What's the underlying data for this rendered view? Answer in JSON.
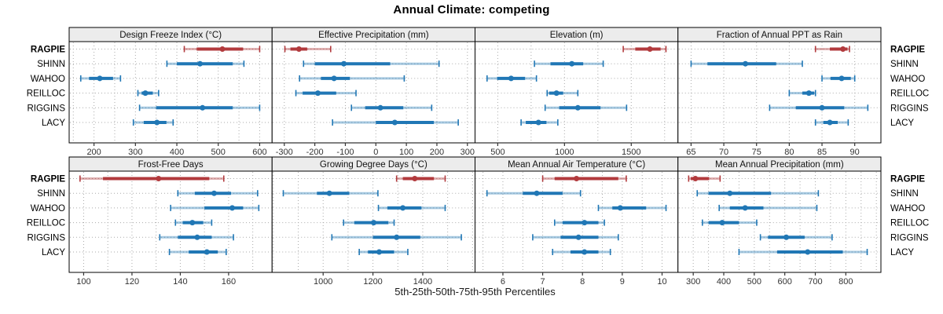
{
  "title": "Annual Climate: competing",
  "footer": "5th-25th-50th-75th-95th Percentiles",
  "sites": [
    "RAGPIE",
    "SHINN",
    "WAHOO",
    "REILLOC",
    "RIGGINS",
    "LACY"
  ],
  "highlight_site": "RAGPIE",
  "colors": {
    "highlight": "#b23a3d",
    "normal": "#2077b5",
    "strip_bg": "#ececec",
    "panel_border": "#000000",
    "grid": "#aaaaaa",
    "tick": "#333333",
    "tick_label": "#333333",
    "label": "#000000"
  },
  "chart_data": [
    {
      "type": "dot-interval",
      "title": "Design Freeze Index (°C)",
      "row": 0,
      "col": 0,
      "xlim": [
        140,
        630
      ],
      "ticks": [
        200,
        300,
        400,
        500,
        600
      ],
      "grid": [
        150,
        200,
        250,
        300,
        350,
        400,
        450,
        500,
        550,
        600
      ],
      "percentiles": [
        5,
        25,
        50,
        75,
        95
      ],
      "series": [
        {
          "name": "RAGPIE",
          "values": [
            418,
            448,
            510,
            560,
            600
          ]
        },
        {
          "name": "SHINN",
          "values": [
            376,
            400,
            456,
            535,
            562
          ]
        },
        {
          "name": "WAHOO",
          "values": [
            168,
            188,
            214,
            246,
            264
          ]
        },
        {
          "name": "REILLOC",
          "values": [
            306,
            315,
            324,
            342,
            356
          ]
        },
        {
          "name": "RIGGINS",
          "values": [
            310,
            350,
            462,
            535,
            600
          ]
        },
        {
          "name": "LACY",
          "values": [
            295,
            320,
            352,
            375,
            391
          ]
        }
      ]
    },
    {
      "type": "dot-interval",
      "title": "Effective Precipitation (mm)",
      "row": 0,
      "col": 1,
      "xlim": [
        -340,
        325
      ],
      "ticks": [
        -300,
        -200,
        -100,
        0,
        100,
        200,
        300
      ],
      "grid": [
        -300,
        -200,
        -100,
        0,
        100,
        200,
        300
      ],
      "percentiles": [
        5,
        25,
        50,
        75,
        95
      ],
      "series": [
        {
          "name": "RAGPIE",
          "values": [
            -298,
            -280,
            -252,
            -225,
            -148
          ]
        },
        {
          "name": "SHINN",
          "values": [
            -237,
            -200,
            -105,
            47,
            207
          ]
        },
        {
          "name": "WAHOO",
          "values": [
            -250,
            -180,
            -137,
            -85,
            93
          ]
        },
        {
          "name": "REILLOC",
          "values": [
            -262,
            -240,
            -190,
            -130,
            -65
          ]
        },
        {
          "name": "RIGGINS",
          "values": [
            -80,
            -35,
            15,
            90,
            183
          ]
        },
        {
          "name": "LACY",
          "values": [
            -142,
            0,
            62,
            190,
            270
          ]
        }
      ]
    },
    {
      "type": "dot-interval",
      "title": "Elevation (m)",
      "row": 0,
      "col": 2,
      "xlim": [
        330,
        1850
      ],
      "ticks": [
        500,
        1000,
        1500
      ],
      "grid": [
        500,
        750,
        1000,
        1250,
        1500,
        1750
      ],
      "percentiles": [
        5,
        25,
        50,
        75,
        95
      ],
      "series": [
        {
          "name": "RAGPIE",
          "values": [
            1440,
            1530,
            1640,
            1720,
            1760
          ]
        },
        {
          "name": "SHINN",
          "values": [
            775,
            895,
            1055,
            1140,
            1290
          ]
        },
        {
          "name": "WAHOO",
          "values": [
            420,
            495,
            600,
            705,
            790
          ]
        },
        {
          "name": "REILLOC",
          "values": [
            870,
            885,
            940,
            990,
            1100
          ]
        },
        {
          "name": "RIGGINS",
          "values": [
            855,
            960,
            1100,
            1270,
            1465
          ]
        },
        {
          "name": "LACY",
          "values": [
            675,
            710,
            805,
            865,
            950
          ]
        }
      ]
    },
    {
      "type": "dot-interval",
      "title": "Fraction of Annual PPT as Rain",
      "row": 0,
      "col": 3,
      "xlim": [
        63,
        94
      ],
      "ticks": [
        65,
        70,
        75,
        80,
        85,
        90
      ],
      "grid": [
        65,
        70,
        75,
        80,
        85,
        90
      ],
      "percentiles": [
        5,
        25,
        50,
        75,
        95
      ],
      "series": [
        {
          "name": "RAGPIE",
          "values": [
            84,
            86.2,
            88.2,
            88.9,
            89.2
          ]
        },
        {
          "name": "SHINN",
          "values": [
            65,
            67.5,
            73.3,
            78,
            82
          ]
        },
        {
          "name": "WAHOO",
          "values": [
            85,
            86.3,
            88,
            89.4,
            90
          ]
        },
        {
          "name": "REILLOC",
          "values": [
            80,
            82,
            83,
            83.8,
            84
          ]
        },
        {
          "name": "RIGGINS",
          "values": [
            77,
            81,
            85,
            88.4,
            92
          ]
        },
        {
          "name": "LACY",
          "values": [
            84,
            85.2,
            86.2,
            87.4,
            89
          ]
        }
      ]
    },
    {
      "type": "dot-interval",
      "title": "Frost-Free Days",
      "row": 1,
      "col": 0,
      "xlim": [
        94,
        178
      ],
      "ticks": [
        100,
        120,
        140,
        160
      ],
      "grid": [
        100,
        110,
        120,
        130,
        140,
        150,
        160,
        170
      ],
      "percentiles": [
        5,
        25,
        50,
        75,
        95
      ],
      "series": [
        {
          "name": "RAGPIE",
          "values": [
            98.5,
            108,
            131,
            152,
            158
          ]
        },
        {
          "name": "SHINN",
          "values": [
            139,
            146,
            154,
            161,
            172
          ]
        },
        {
          "name": "WAHOO",
          "values": [
            136,
            150,
            161.5,
            166,
            172.5
          ]
        },
        {
          "name": "REILLOC",
          "values": [
            138,
            141,
            145,
            149.5,
            153
          ]
        },
        {
          "name": "RIGGINS",
          "values": [
            131.5,
            139,
            147,
            153,
            162
          ]
        },
        {
          "name": "LACY",
          "values": [
            135.5,
            143.5,
            151,
            155.5,
            159
          ]
        }
      ]
    },
    {
      "type": "dot-interval",
      "title": "Growing Degree Days (°C)",
      "row": 1,
      "col": 1,
      "xlim": [
        795,
        1610
      ],
      "ticks": [
        1000,
        1200,
        1400
      ],
      "grid": [
        800,
        900,
        1000,
        1100,
        1200,
        1300,
        1400,
        1500,
        1600
      ],
      "percentiles": [
        5,
        25,
        50,
        75,
        95
      ],
      "series": [
        {
          "name": "RAGPIE",
          "values": [
            1295,
            1320,
            1368,
            1445,
            1490
          ]
        },
        {
          "name": "SHINN",
          "values": [
            840,
            975,
            1025,
            1105,
            1220
          ]
        },
        {
          "name": "WAHOO",
          "values": [
            1222,
            1258,
            1320,
            1395,
            1490
          ]
        },
        {
          "name": "REILLOC",
          "values": [
            1082,
            1125,
            1203,
            1262,
            1285
          ]
        },
        {
          "name": "RIGGINS",
          "values": [
            1035,
            1200,
            1295,
            1390,
            1555
          ]
        },
        {
          "name": "LACY",
          "values": [
            1145,
            1180,
            1225,
            1285,
            1340
          ]
        }
      ]
    },
    {
      "type": "dot-interval",
      "title": "Mean Annual Air Temperature (°C)",
      "row": 1,
      "col": 2,
      "xlim": [
        5.3,
        10.4
      ],
      "ticks": [
        6,
        7,
        8,
        9,
        10
      ],
      "grid": [
        5.5,
        6,
        6.5,
        7,
        7.5,
        8,
        8.5,
        9,
        9.5,
        10
      ],
      "percentiles": [
        5,
        25,
        50,
        75,
        95
      ],
      "series": [
        {
          "name": "RAGPIE",
          "values": [
            7.0,
            7.3,
            7.85,
            8.9,
            9.1
          ]
        },
        {
          "name": "SHINN",
          "values": [
            5.6,
            6.5,
            6.85,
            7.5,
            7.95
          ]
        },
        {
          "name": "WAHOO",
          "values": [
            8.4,
            8.75,
            8.95,
            9.6,
            10.1
          ]
        },
        {
          "name": "REILLOC",
          "values": [
            7.3,
            7.5,
            8.05,
            8.4,
            8.55
          ]
        },
        {
          "name": "RIGGINS",
          "values": [
            6.75,
            7.45,
            7.9,
            8.4,
            8.9
          ]
        },
        {
          "name": "LACY",
          "values": [
            7.25,
            7.7,
            8.05,
            8.4,
            8.7
          ]
        }
      ]
    },
    {
      "type": "dot-interval",
      "title": "Mean Annual Precipitation (mm)",
      "row": 1,
      "col": 3,
      "xlim": [
        250,
        915
      ],
      "ticks": [
        300,
        400,
        500,
        600,
        700,
        800
      ],
      "grid": [
        300,
        350,
        400,
        450,
        500,
        550,
        600,
        650,
        700,
        750,
        800,
        850,
        900
      ],
      "percentiles": [
        5,
        25,
        50,
        75,
        95
      ],
      "series": [
        {
          "name": "RAGPIE",
          "values": [
            285,
            292,
            307,
            352,
            388
          ]
        },
        {
          "name": "SHINN",
          "values": [
            313,
            350,
            420,
            555,
            710
          ]
        },
        {
          "name": "WAHOO",
          "values": [
            385,
            420,
            470,
            530,
            705
          ]
        },
        {
          "name": "REILLOC",
          "values": [
            330,
            350,
            395,
            450,
            508
          ]
        },
        {
          "name": "RIGGINS",
          "values": [
            520,
            545,
            605,
            665,
            755
          ]
        },
        {
          "name": "LACY",
          "values": [
            450,
            575,
            675,
            790,
            870
          ]
        }
      ]
    }
  ]
}
